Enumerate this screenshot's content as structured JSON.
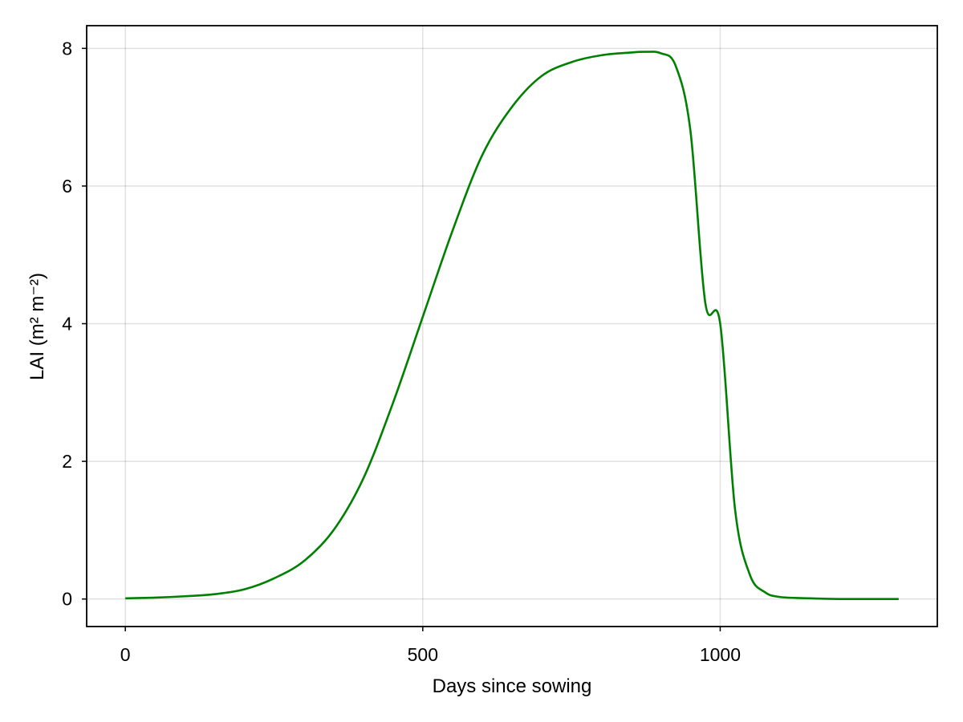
{
  "chart_data": {
    "type": "line",
    "xlabel": "Days since sowing",
    "ylabel": "LAI (m² m⁻²)",
    "xlim": [
      -65,
      1365
    ],
    "ylim": [
      -0.4,
      8.33
    ],
    "xticks": [
      0,
      500,
      1000
    ],
    "yticks": [
      0,
      2,
      4,
      6,
      8
    ],
    "grid": true,
    "line_color": "#008000",
    "series": [
      {
        "x": [
          0,
          50,
          100,
          150,
          200,
          250,
          300,
          350,
          400,
          450,
          500,
          550,
          600,
          650,
          700,
          750,
          800,
          850,
          875,
          900,
          925,
          950,
          975,
          1000,
          1025,
          1050,
          1075,
          1100,
          1150,
          1200,
          1250,
          1300
        ],
        "y": [
          0.01,
          0.02,
          0.04,
          0.07,
          0.14,
          0.3,
          0.55,
          1.0,
          1.75,
          2.85,
          4.1,
          5.35,
          6.45,
          7.15,
          7.6,
          7.8,
          7.9,
          7.94,
          7.95,
          7.93,
          7.75,
          6.8,
          4.3,
          4.0,
          1.3,
          0.35,
          0.1,
          0.03,
          0.01,
          0.0,
          0.0,
          0.0
        ]
      }
    ]
  }
}
